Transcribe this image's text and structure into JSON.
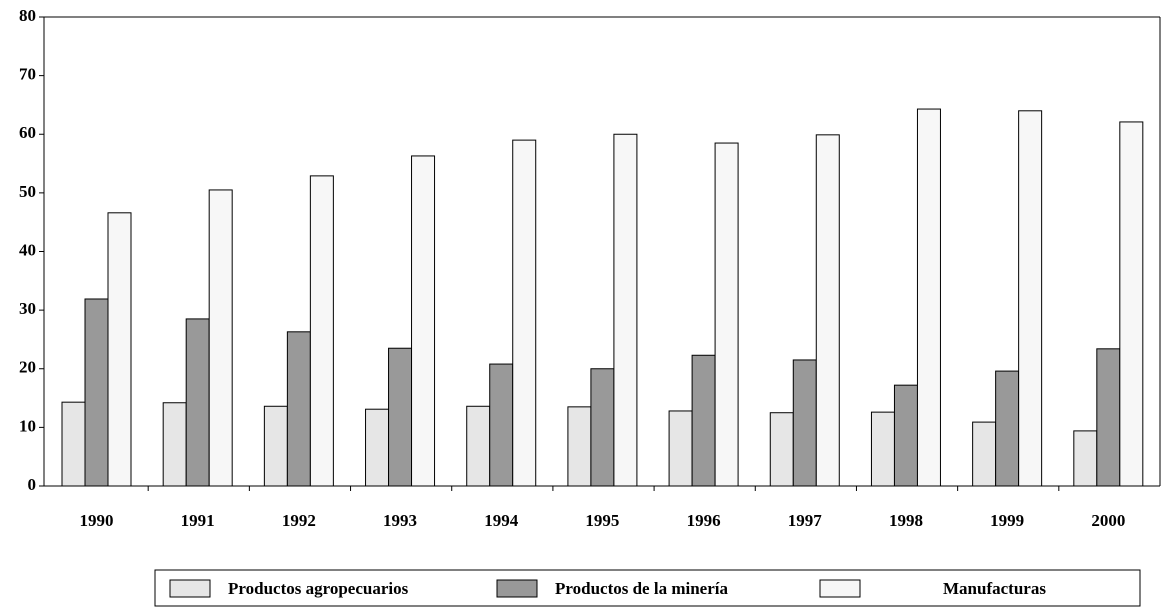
{
  "chart_data": {
    "type": "bar",
    "categories": [
      "1990",
      "1991",
      "1992",
      "1993",
      "1994",
      "1995",
      "1996",
      "1997",
      "1998",
      "1999",
      "2000"
    ],
    "series": [
      {
        "name": "Productos agropecuarios",
        "color": "#e6e6e6",
        "values": [
          14.3,
          14.2,
          13.6,
          13.1,
          13.6,
          13.5,
          12.8,
          12.5,
          12.6,
          10.9,
          9.4
        ]
      },
      {
        "name": "Productos de la minería",
        "color": "#999999",
        "values": [
          31.9,
          28.5,
          26.3,
          23.5,
          20.8,
          20.0,
          22.3,
          21.5,
          17.2,
          19.6,
          23.4
        ]
      },
      {
        "name": "Manufacturas",
        "color": "#f7f7f7",
        "values": [
          46.6,
          50.5,
          52.9,
          56.3,
          59.0,
          60.0,
          58.5,
          59.9,
          64.3,
          64.0,
          62.1
        ]
      }
    ],
    "ylim": [
      0,
      80
    ],
    "yticks": [
      0,
      10,
      20,
      30,
      40,
      50,
      60,
      70,
      80
    ],
    "grid": false,
    "legend": "bottom"
  }
}
